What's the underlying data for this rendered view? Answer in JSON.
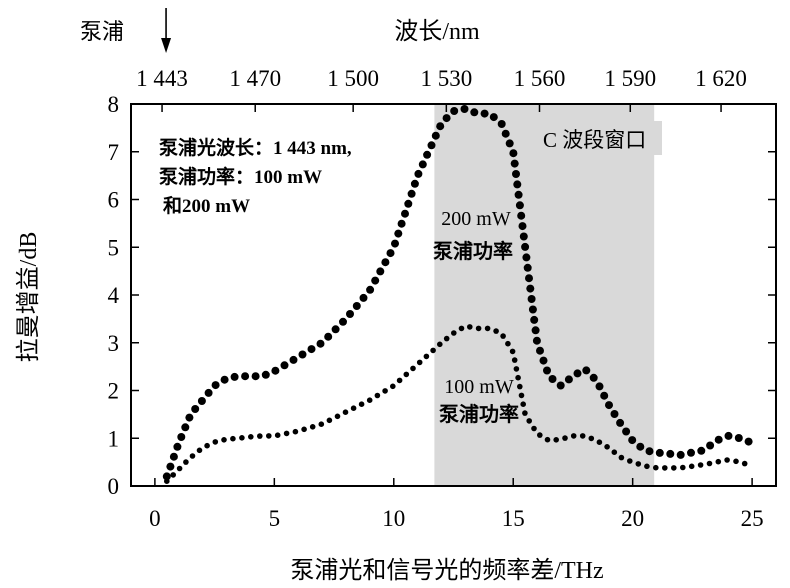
{
  "chart_data": {
    "type": "scatter",
    "xlabel": "泵浦光和信号光的频率差/THz",
    "ylabel": "拉曼增益/dB",
    "x2label": "波长/nm",
    "xlim": [
      -1,
      26
    ],
    "ylim": [
      0,
      8
    ],
    "x_ticks": [
      0,
      5,
      10,
      15,
      20,
      25
    ],
    "y_ticks": [
      0,
      1,
      2,
      3,
      4,
      5,
      6,
      7,
      8
    ],
    "top_ticks": [
      {
        "label": "1 443",
        "x": 0.3
      },
      {
        "label": "1 470",
        "x": 4.2
      },
      {
        "label": "1 500",
        "x": 8.3
      },
      {
        "label": "1 530",
        "x": 12.2
      },
      {
        "label": "1 560",
        "x": 16.1
      },
      {
        "label": "1 590",
        "x": 19.9
      },
      {
        "label": "1 620",
        "x": 23.7
      }
    ],
    "pump_marker": {
      "label": "泵浦",
      "x": 0.3
    },
    "shaded_band": {
      "label": "C 波段窗口",
      "x_start": 11.7,
      "x_end": 20.9,
      "color": "#d9d9d9"
    },
    "annotations": {
      "info_line1": "泵浦光波长：1 443 nm,",
      "info_line2": "泵浦功率：100 mW",
      "info_line3": "和200 mW",
      "label_200_value": "200 mW",
      "label_200_text": "泵浦功率",
      "label_100_value": "100 mW",
      "label_100_text": "泵浦功率"
    },
    "series": [
      {
        "point_size": "large",
        "x": [
          0.5,
          1.0,
          1.5,
          2.0,
          2.5,
          3.0,
          3.5,
          4.0,
          4.5,
          5.0,
          6.0,
          7.0,
          8.0,
          9.0,
          10.0,
          11.0,
          12.0,
          12.5,
          13.0,
          13.5,
          14.0,
          14.5,
          15.0,
          15.5,
          16.0,
          16.5,
          17.0,
          17.5,
          18.0,
          18.5,
          19.0,
          19.5,
          20.0,
          20.5,
          21.0,
          22.0,
          23.0,
          23.5,
          24.0,
          24.5,
          25.0
        ],
        "y": [
          0.2,
          0.9,
          1.5,
          1.8,
          2.1,
          2.25,
          2.3,
          2.3,
          2.3,
          2.4,
          2.7,
          3.0,
          3.5,
          4.1,
          5.0,
          6.5,
          7.6,
          7.85,
          7.9,
          7.8,
          7.8,
          7.6,
          7.0,
          5.0,
          3.0,
          2.3,
          2.1,
          2.3,
          2.45,
          2.2,
          1.7,
          1.3,
          0.95,
          0.75,
          0.7,
          0.65,
          0.75,
          0.95,
          1.05,
          1.0,
          0.9
        ]
      },
      {
        "point_size": "small",
        "x": [
          0.5,
          1.0,
          1.5,
          2.0,
          2.5,
          3.0,
          3.5,
          4.0,
          4.5,
          5.0,
          6.0,
          7.0,
          8.0,
          9.0,
          10.0,
          11.0,
          12.0,
          12.5,
          13.0,
          13.5,
          14.0,
          14.5,
          15.0,
          15.5,
          16.0,
          16.5,
          17.0,
          17.5,
          18.0,
          18.5,
          19.0,
          19.5,
          20.0,
          20.5,
          21.0,
          22.0,
          23.0,
          23.5,
          24.0,
          24.5,
          25.0
        ],
        "y": [
          0.1,
          0.35,
          0.6,
          0.8,
          0.92,
          0.98,
          1.0,
          1.03,
          1.05,
          1.05,
          1.15,
          1.3,
          1.55,
          1.8,
          2.1,
          2.55,
          3.0,
          3.2,
          3.35,
          3.3,
          3.3,
          3.2,
          2.8,
          1.5,
          1.1,
          0.95,
          0.98,
          1.05,
          1.05,
          0.95,
          0.8,
          0.6,
          0.5,
          0.42,
          0.38,
          0.38,
          0.45,
          0.5,
          0.55,
          0.5,
          0.42
        ]
      }
    ]
  }
}
